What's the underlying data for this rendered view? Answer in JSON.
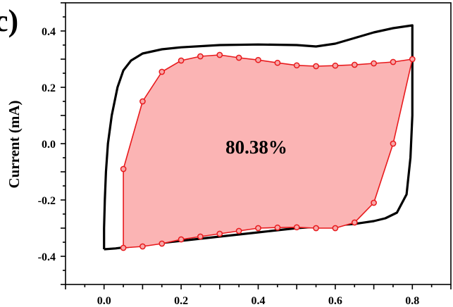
{
  "figure": {
    "panel_label": "c)"
  },
  "chart_data": {
    "type": "line",
    "title": "",
    "xlabel": "",
    "ylabel": "Current (mA)",
    "xlim": [
      -0.1,
      0.9
    ],
    "ylim": [
      -0.5,
      0.5
    ],
    "x_ticks": [
      0.0,
      0.2,
      0.4,
      0.6,
      0.8
    ],
    "x_tick_labels": [
      "0.0",
      "0.2",
      "0.4",
      "0.6",
      "0.8"
    ],
    "y_ticks": [
      -0.4,
      -0.2,
      0.0,
      0.2,
      0.4
    ],
    "y_tick_labels": [
      "-0.4",
      "-0.2",
      "0.0",
      "0.2",
      "0.4"
    ],
    "grid": false,
    "annotation": "80.38%",
    "series": [
      {
        "color": "#000000",
        "marker": "none",
        "fill": "none",
        "points": [
          [
            0.0,
            -0.375
          ],
          [
            0.03,
            -0.372
          ],
          [
            0.1,
            -0.36
          ],
          [
            0.2,
            -0.345
          ],
          [
            0.3,
            -0.33
          ],
          [
            0.4,
            -0.315
          ],
          [
            0.5,
            -0.3
          ],
          [
            0.6,
            -0.29
          ],
          [
            0.65,
            -0.285
          ],
          [
            0.7,
            -0.275
          ],
          [
            0.73,
            -0.265
          ],
          [
            0.76,
            -0.245
          ],
          [
            0.785,
            -0.18
          ],
          [
            0.795,
            -0.05
          ],
          [
            0.8,
            0.1
          ],
          [
            0.8,
            0.25
          ],
          [
            0.8,
            0.3
          ],
          [
            0.8,
            0.42
          ],
          [
            0.75,
            0.41
          ],
          [
            0.7,
            0.395
          ],
          [
            0.65,
            0.375
          ],
          [
            0.6,
            0.355
          ],
          [
            0.55,
            0.345
          ],
          [
            0.5,
            0.35
          ],
          [
            0.4,
            0.352
          ],
          [
            0.3,
            0.35
          ],
          [
            0.2,
            0.342
          ],
          [
            0.15,
            0.335
          ],
          [
            0.1,
            0.32
          ],
          [
            0.07,
            0.295
          ],
          [
            0.05,
            0.26
          ],
          [
            0.035,
            0.2
          ],
          [
            0.02,
            0.1
          ],
          [
            0.01,
            0.0
          ],
          [
            0.005,
            -0.1
          ],
          [
            0.002,
            -0.2
          ],
          [
            0.0,
            -0.3
          ],
          [
            0.0,
            -0.375
          ]
        ]
      },
      {
        "color": "#e8191c",
        "marker": "circle",
        "fill": "#fbb4b4",
        "points": [
          [
            0.05,
            -0.37
          ],
          [
            0.1,
            -0.365
          ],
          [
            0.15,
            -0.355
          ],
          [
            0.2,
            -0.34
          ],
          [
            0.25,
            -0.33
          ],
          [
            0.3,
            -0.32
          ],
          [
            0.35,
            -0.31
          ],
          [
            0.4,
            -0.3
          ],
          [
            0.45,
            -0.298
          ],
          [
            0.5,
            -0.297
          ],
          [
            0.55,
            -0.3
          ],
          [
            0.6,
            -0.3
          ],
          [
            0.65,
            -0.28
          ],
          [
            0.7,
            -0.21
          ],
          [
            0.75,
            0.0
          ],
          [
            0.8,
            0.3
          ],
          [
            0.75,
            0.29
          ],
          [
            0.7,
            0.285
          ],
          [
            0.65,
            0.28
          ],
          [
            0.6,
            0.277
          ],
          [
            0.55,
            0.275
          ],
          [
            0.5,
            0.278
          ],
          [
            0.45,
            0.287
          ],
          [
            0.4,
            0.297
          ],
          [
            0.35,
            0.305
          ],
          [
            0.3,
            0.315
          ],
          [
            0.25,
            0.31
          ],
          [
            0.2,
            0.295
          ],
          [
            0.15,
            0.255
          ],
          [
            0.1,
            0.15
          ],
          [
            0.05,
            -0.09
          ],
          [
            0.05,
            -0.37
          ]
        ]
      }
    ]
  }
}
